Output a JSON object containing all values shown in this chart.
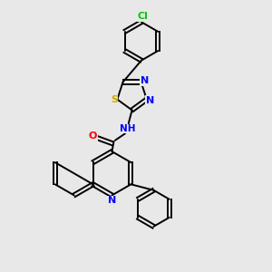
{
  "bg_color": "#e8e8e8",
  "bond_color": "#000000",
  "atom_colors": {
    "N": "#0000ff",
    "O": "#ff0000",
    "S": "#ccaa00",
    "Cl": "#00cc00",
    "C": "#000000",
    "H": "#777777"
  },
  "figsize": [
    3.0,
    3.0
  ],
  "dpi": 100,
  "xlim": [
    0,
    10
  ],
  "ylim": [
    0,
    10
  ]
}
